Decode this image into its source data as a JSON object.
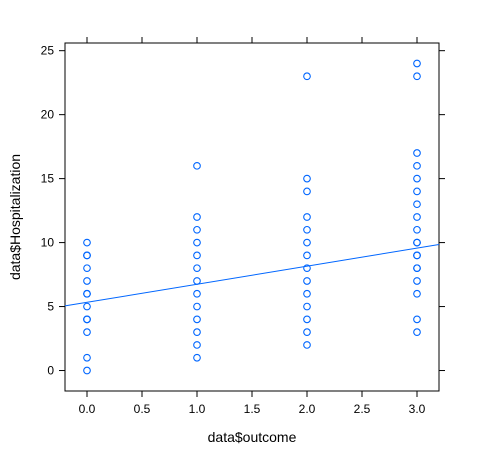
{
  "chart_data": {
    "type": "scatter",
    "title": "",
    "xlabel": "data$outcome",
    "ylabel": "data$Hospitalization",
    "xlim": [
      -0.2,
      3.2
    ],
    "ylim": [
      -1.6,
      25.6
    ],
    "x_ticks": [
      "0.0",
      "0.5",
      "1.0",
      "1.5",
      "2.0",
      "2.5",
      "3.0"
    ],
    "y_ticks": [
      "0",
      "5",
      "10",
      "15",
      "20",
      "25"
    ],
    "grid": false,
    "point_color": "#0066ff",
    "line_color": "#0066ff",
    "series": [
      {
        "x": [
          0,
          0,
          0,
          0,
          0,
          0,
          0,
          0,
          0,
          0,
          0,
          0,
          0,
          1,
          1,
          1,
          1,
          1,
          1,
          1,
          1,
          1,
          1,
          1,
          1,
          1,
          2,
          2,
          2,
          2,
          2,
          2,
          2,
          2,
          2,
          2,
          2,
          2,
          2,
          2,
          3,
          3,
          3,
          3,
          3,
          3,
          3,
          3,
          3,
          3,
          3,
          3,
          3,
          3,
          3,
          3,
          3,
          3,
          3
        ],
        "y": [
          0,
          1,
          3,
          4,
          5,
          6,
          7,
          8,
          9,
          10,
          4,
          6,
          9,
          1,
          2,
          3,
          4,
          5,
          6,
          7,
          8,
          9,
          10,
          11,
          12,
          16,
          2,
          3,
          4,
          5,
          6,
          7,
          8,
          9,
          10,
          11,
          12,
          14,
          15,
          23,
          3,
          4,
          6,
          7,
          8,
          9,
          10,
          11,
          12,
          13,
          14,
          15,
          16,
          17,
          23,
          24,
          8,
          9,
          10
        ]
      }
    ],
    "fit_line": {
      "x": [
        -0.2,
        3.2
      ],
      "y": [
        5.05,
        9.85
      ]
    }
  }
}
